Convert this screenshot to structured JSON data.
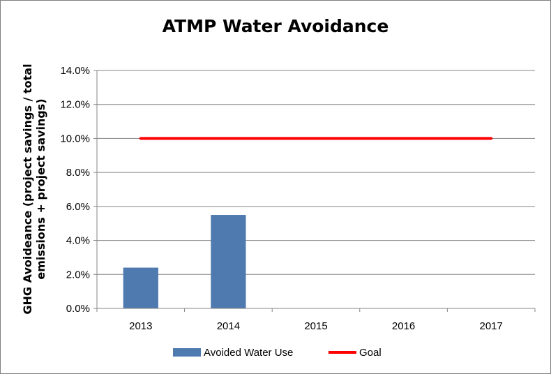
{
  "chart_data": {
    "type": "bar",
    "title": "ATMP Water Avoidance",
    "xlabel": "",
    "ylabel": [
      "GHG Avoideance (project savings / total",
      "emissions + project savings)"
    ],
    "categories": [
      "2013",
      "2014",
      "2015",
      "2016",
      "2017"
    ],
    "ylim": [
      0,
      0.14
    ],
    "yticks": [
      0,
      0.02,
      0.04,
      0.06,
      0.08,
      0.1,
      0.12,
      0.14
    ],
    "ytick_labels": [
      "0.0%",
      "2.0%",
      "4.0%",
      "6.0%",
      "8.0%",
      "10.0%",
      "12.0%",
      "14.0%"
    ],
    "grid": true,
    "legend_position": "bottom",
    "series": [
      {
        "name": "Avoided Water Use",
        "kind": "bar",
        "color": "#4f7aaf",
        "values": [
          0.024,
          0.055,
          null,
          null,
          null
        ]
      },
      {
        "name": "Goal",
        "kind": "line",
        "color": "#ff0000",
        "values": [
          0.1,
          0.1,
          0.1,
          0.1,
          0.1
        ]
      }
    ]
  }
}
